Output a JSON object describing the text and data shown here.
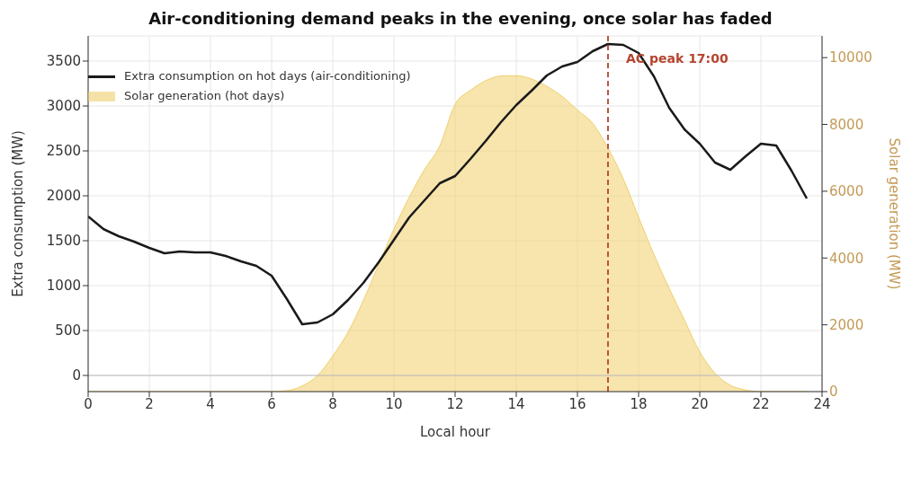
{
  "chart_data": {
    "type": "line",
    "title": "Air-conditioning demand peaks in the evening, once solar has faded",
    "xlabel": "Local hour",
    "ylabel": "Extra consumption (MW)",
    "y2label": "Solar generation (MW)",
    "x": [
      0,
      0.5,
      1,
      1.5,
      2,
      2.5,
      3,
      3.5,
      4,
      4.5,
      5,
      5.5,
      6,
      6.5,
      7,
      7.5,
      8,
      8.5,
      9,
      9.5,
      10,
      10.5,
      11,
      11.5,
      12,
      12.5,
      13,
      13.5,
      14,
      14.5,
      15,
      15.5,
      16,
      16.5,
      17,
      17.5,
      18,
      18.5,
      19,
      19.5,
      20,
      20.5,
      21,
      21.5,
      22,
      22.5,
      23,
      23.5
    ],
    "series": [
      {
        "name": "Extra consumption on hot days (air-conditioning)",
        "color": "#1a1a1a",
        "values": [
          1770,
          1630,
          1550,
          1490,
          1420,
          1360,
          1380,
          1370,
          1370,
          1330,
          1270,
          1220,
          1110,
          850,
          570,
          590,
          680,
          840,
          1030,
          1260,
          1510,
          1760,
          1950,
          2140,
          2220,
          2410,
          2610,
          2820,
          3010,
          3170,
          3340,
          3440,
          3490,
          3610,
          3690,
          3680,
          3590,
          3330,
          2980,
          2740,
          2580,
          2370,
          2290,
          2440,
          2580,
          2560,
          2280,
          1970
        ]
      },
      {
        "name": "Solar generation (hot days)",
        "type": "area",
        "axis": "y2",
        "color": "#f0cf6a",
        "values": [
          0,
          0,
          0,
          0,
          0,
          0,
          0,
          0,
          0,
          0,
          0,
          0,
          0,
          30,
          170,
          480,
          1070,
          1780,
          2730,
          3800,
          4870,
          5820,
          6650,
          7360,
          8600,
          9020,
          9310,
          9450,
          9460,
          9360,
          9140,
          8840,
          8430,
          8030,
          7290,
          6370,
          5220,
          4110,
          3090,
          2140,
          1190,
          550,
          190,
          50,
          0,
          0,
          0,
          0
        ]
      }
    ],
    "xlim": [
      0,
      24
    ],
    "xticks": [
      0,
      2,
      4,
      6,
      8,
      10,
      12,
      14,
      16,
      18,
      20,
      22,
      24
    ],
    "ylim": [
      -180,
      3780
    ],
    "yticks": [
      0,
      500,
      1000,
      1500,
      2000,
      2500,
      3000,
      3500
    ],
    "y2lim": [
      0,
      10650
    ],
    "y2ticks": [
      0,
      2000,
      4000,
      6000,
      8000,
      10000
    ],
    "ref_lines": [
      {
        "axis": "x",
        "value": 17,
        "label": "AC peak 17:00",
        "color": "#b5452f",
        "line_style": "dashed"
      },
      {
        "axis": "y",
        "value": 0,
        "color": "#bbbbbb",
        "line_style": "solid"
      }
    ],
    "grid": true,
    "legend": "top left"
  }
}
